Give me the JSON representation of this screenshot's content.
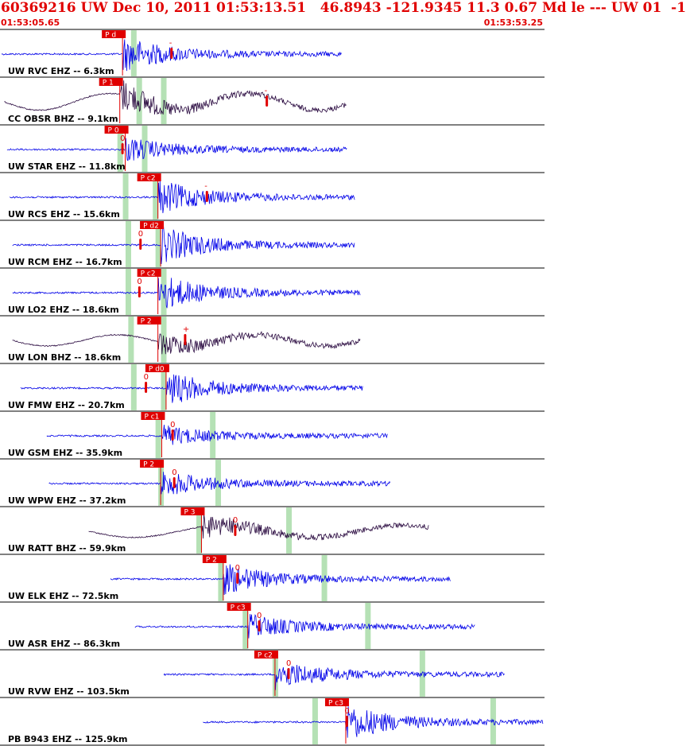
{
  "header": {
    "title": "60369216 UW Dec 10, 2011 01:53:13.51   46.8943 -121.9345 11.3 0.67 Md le --- UW 01  -1",
    "start_time": "01:53:05.65",
    "end_time": "01:53:53.25"
  },
  "colors": {
    "header_text": "#e00000",
    "trace_ehz": "#0000e8",
    "trace_bhz": "#2a0a40",
    "pick_box": "#e00000",
    "coda_window": "#a8dca8",
    "separator": "#000000"
  },
  "chart_data": {
    "type": "seismogram-record-section",
    "time_range": [
      "01:53:05.65",
      "01:53:53.25"
    ],
    "traces": [
      {
        "label": "UW RVC EHZ -- 6.3km",
        "kind": "EHZ",
        "pick": "P d",
        "polarity": "-",
        "onset": 0.225,
        "end": 0.63,
        "start": 0.0,
        "amp": 0.8,
        "greens": [
          0.245
        ],
        "marks": [
          0.315
        ]
      },
      {
        "label": "CC OBSR BHZ -- 9.1km",
        "kind": "BHZ",
        "pick": "P 1",
        "polarity": "-",
        "onset": 0.22,
        "end": 0.64,
        "start": 0.005,
        "amp": 0.75,
        "greens": [
          0.255,
          0.3
        ],
        "marks": [
          0.49
        ]
      },
      {
        "label": "UW STAR EHZ -- 11.8km",
        "kind": "EHZ",
        "pick": "P 0",
        "polarity": "0",
        "onset": 0.23,
        "end": 0.64,
        "start": 0.01,
        "amp": 0.55,
        "greens": [
          0.22,
          0.265
        ],
        "marks": [
          0.225
        ]
      },
      {
        "label": "UW RCS EHZ -- 15.6km",
        "kind": "EHZ",
        "pick": "P c2",
        "polarity": "-",
        "onset": 0.29,
        "end": 0.655,
        "start": 0.015,
        "amp": 0.8,
        "greens": [
          0.23,
          0.285
        ],
        "marks": [
          0.38
        ]
      },
      {
        "label": "UW RCM EHZ -- 16.7km",
        "kind": "EHZ",
        "pick": "P d2",
        "polarity": "0",
        "onset": 0.295,
        "end": 0.655,
        "start": 0.02,
        "amp": 0.85,
        "greens": [
          0.235,
          0.29
        ],
        "marks": [
          0.258
        ]
      },
      {
        "label": "UW LO2 EHZ -- 18.6km",
        "kind": "EHZ",
        "pick": "P c2",
        "polarity": "0",
        "onset": 0.29,
        "end": 0.665,
        "start": 0.02,
        "amp": 0.85,
        "greens": [
          0.235,
          0.3
        ],
        "marks": [
          0.256
        ]
      },
      {
        "label": "UW LON BHZ -- 18.6km",
        "kind": "BHZ",
        "pick": "P 2",
        "polarity": "+",
        "onset": 0.29,
        "end": 0.665,
        "start": 0.02,
        "amp": 0.5,
        "greens": [
          0.24,
          0.3
        ],
        "marks": [
          0.34
        ]
      },
      {
        "label": "UW FMW EHZ -- 20.7km",
        "kind": "EHZ",
        "pick": "P d0",
        "polarity": "0",
        "onset": 0.305,
        "end": 0.67,
        "start": 0.035,
        "amp": 0.8,
        "greens": [
          0.245,
          0.3
        ],
        "marks": [
          0.268
        ]
      },
      {
        "label": "UW GSM EHZ -- 35.9km",
        "kind": "EHZ",
        "pick": "P c1",
        "polarity": "0",
        "onset": 0.297,
        "end": 0.715,
        "start": 0.083,
        "amp": 0.45,
        "greens": [
          0.29,
          0.39
        ],
        "marks": [
          0.317
        ]
      },
      {
        "label": "UW WPW EHZ -- 37.2km",
        "kind": "EHZ",
        "pick": "P 2",
        "polarity": "0",
        "onset": 0.295,
        "end": 0.72,
        "start": 0.087,
        "amp": 0.6,
        "greens": [
          0.295,
          0.4
        ],
        "marks": [
          0.32
        ]
      },
      {
        "label": "UW RATT BHZ -- 59.9km",
        "kind": "BHZ",
        "pick": "P 3",
        "polarity": "0",
        "onset": 0.37,
        "end": 0.79,
        "start": 0.16,
        "amp": 0.55,
        "greens": [
          0.365,
          0.53
        ],
        "marks": [
          0.432
        ]
      },
      {
        "label": "UW ELK EHZ -- 72.5km",
        "kind": "EHZ",
        "pick": "P 2",
        "polarity": "0",
        "onset": 0.41,
        "end": 0.83,
        "start": 0.2,
        "amp": 0.7,
        "greens": [
          0.405,
          0.595
        ],
        "marks": [
          0.436
        ]
      },
      {
        "label": "UW ASR EHZ -- 86.3km",
        "kind": "EHZ",
        "pick": "P c3",
        "polarity": "0",
        "onset": 0.455,
        "end": 0.875,
        "start": 0.245,
        "amp": 0.55,
        "greens": [
          0.45,
          0.675
        ],
        "marks": [
          0.476
        ]
      },
      {
        "label": "UW RVW EHZ -- 103.5km",
        "kind": "EHZ",
        "pick": "P c2",
        "polarity": "0",
        "onset": 0.505,
        "end": 0.93,
        "start": 0.298,
        "amp": 0.7,
        "greens": [
          0.505,
          0.775
        ],
        "marks": [
          0.53
        ]
      },
      {
        "label": "PB B943 EHZ -- 125.9km",
        "kind": "EHZ",
        "pick": "P c3",
        "polarity": "0",
        "onset": 0.635,
        "end": 1.0,
        "start": 0.37,
        "amp": 0.85,
        "greens": [
          0.578,
          0.905
        ],
        "marks": [
          0.637
        ]
      }
    ]
  }
}
